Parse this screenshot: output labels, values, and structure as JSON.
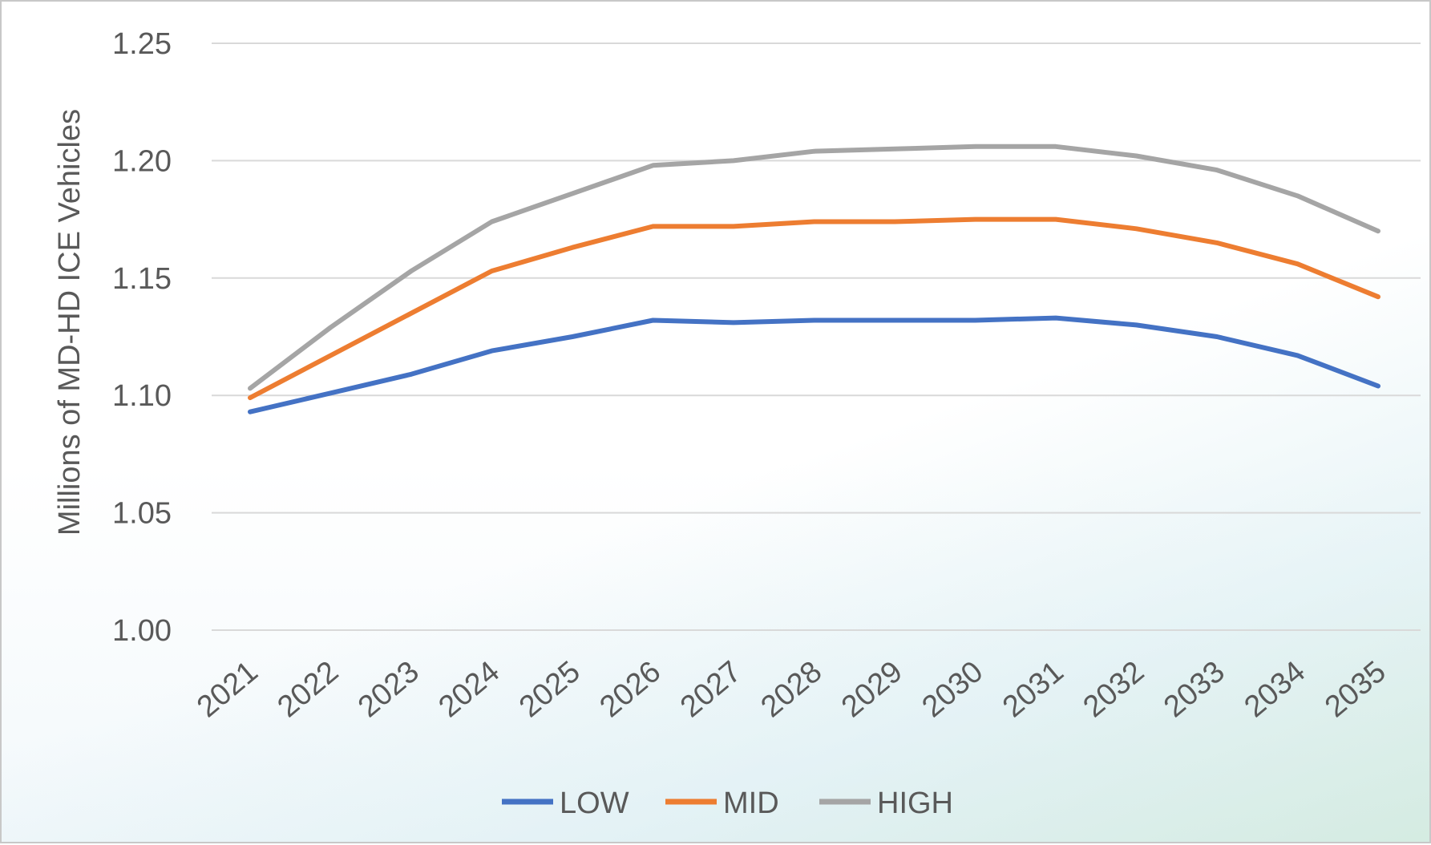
{
  "chart_data": {
    "type": "line",
    "title": "",
    "xlabel": "",
    "ylabel": "Millions of MD-HD ICE Vehicles",
    "ylim": [
      1.0,
      1.25
    ],
    "yticks": [
      "1.00",
      "1.05",
      "1.10",
      "1.15",
      "1.20",
      "1.25"
    ],
    "grid": true,
    "legend_position": "bottom",
    "categories": [
      "2021",
      "2022",
      "2023",
      "2024",
      "2025",
      "2026",
      "2027",
      "2028",
      "2029",
      "2030",
      "2031",
      "2032",
      "2033",
      "2034",
      "2035"
    ],
    "series": [
      {
        "name": "LOW",
        "color": "#4472C4",
        "values": [
          1.093,
          1.101,
          1.109,
          1.119,
          1.125,
          1.132,
          1.131,
          1.132,
          1.132,
          1.132,
          1.133,
          1.13,
          1.125,
          1.117,
          1.104
        ]
      },
      {
        "name": "MID",
        "color": "#ED7D31",
        "values": [
          1.099,
          1.117,
          1.135,
          1.153,
          1.163,
          1.172,
          1.172,
          1.174,
          1.174,
          1.175,
          1.175,
          1.171,
          1.165,
          1.156,
          1.142
        ]
      },
      {
        "name": "HIGH",
        "color": "#A5A5A5",
        "values": [
          1.103,
          1.129,
          1.153,
          1.174,
          1.186,
          1.198,
          1.2,
          1.204,
          1.205,
          1.206,
          1.206,
          1.202,
          1.196,
          1.185,
          1.17
        ]
      }
    ]
  }
}
